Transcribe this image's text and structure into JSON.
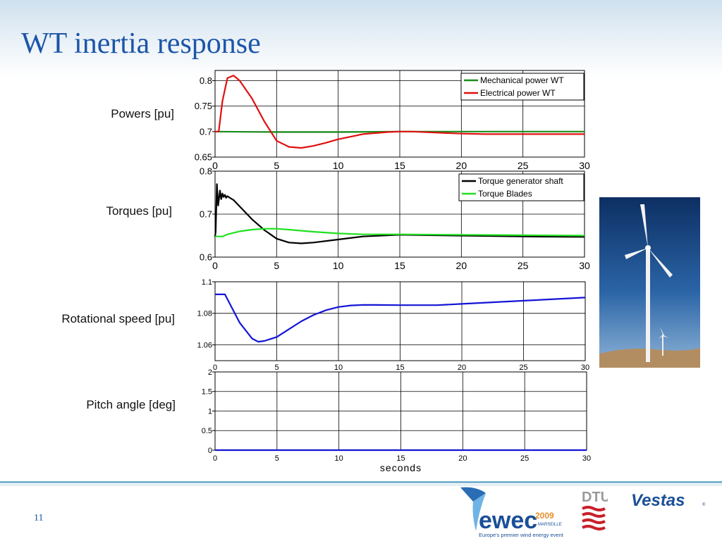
{
  "slide": {
    "title": "WT inertia response",
    "page_number": "11"
  },
  "row_labels": [
    "Powers [pu]",
    "Torques [pu]",
    "Rotational speed [pu]",
    "Pitch angle [deg]"
  ],
  "logos": {
    "ewec": {
      "name": "ewec",
      "year": "2009",
      "city": "MARSEILLE",
      "tagline": "Europe's premier wind energy event"
    },
    "dtu": "DTU",
    "vestas": "Vestas"
  },
  "chart_data": [
    {
      "type": "line",
      "ylim": [
        0.65,
        0.82
      ],
      "yticks": [
        0.65,
        0.7,
        0.75,
        0.8
      ],
      "yticklabels": [
        "0.65",
        "0.7",
        "0.75",
        "0.8"
      ],
      "xlim": [
        0,
        30
      ],
      "xticks": [
        0,
        5,
        10,
        15,
        20,
        25,
        30
      ],
      "xticklabels": [
        "0",
        "5",
        "10",
        "15",
        "20",
        "25",
        "30"
      ],
      "grid": true,
      "legend": "top-right",
      "series": [
        {
          "name": "Mechanical power WT",
          "color": "#1a8c1a",
          "x": [
            0,
            5,
            10,
            15,
            20,
            25,
            30
          ],
          "y": [
            0.7,
            0.699,
            0.699,
            0.7,
            0.7,
            0.7,
            0.7
          ]
        },
        {
          "name": "Electrical power WT",
          "color": "#e01010",
          "x": [
            0,
            0.3,
            0.6,
            1,
            1.5,
            2,
            3,
            4,
            5,
            6,
            7,
            8,
            9,
            10,
            12,
            14,
            15,
            16,
            18,
            20,
            22,
            25,
            30
          ],
          "y": [
            0.7,
            0.7,
            0.76,
            0.805,
            0.81,
            0.8,
            0.765,
            0.72,
            0.682,
            0.67,
            0.668,
            0.672,
            0.678,
            0.685,
            0.695,
            0.699,
            0.7,
            0.7,
            0.698,
            0.696,
            0.695,
            0.695,
            0.695
          ]
        }
      ]
    },
    {
      "type": "line",
      "ylim": [
        0.6,
        0.8
      ],
      "yticks": [
        0.6,
        0.7,
        0.8
      ],
      "yticklabels": [
        "0.6",
        "0.7",
        "0.8"
      ],
      "xlim": [
        0,
        30
      ],
      "xticks": [
        0,
        5,
        10,
        15,
        20,
        25,
        30
      ],
      "xticklabels": [
        "0",
        "5",
        "10",
        "15",
        "20",
        "25",
        "30"
      ],
      "grid": true,
      "legend": "top-right",
      "series": [
        {
          "name": "Torque generator shaft",
          "color": "#000000",
          "x": [
            0,
            0.05,
            0.15,
            0.25,
            0.4,
            0.5,
            0.6,
            0.7,
            0.8,
            0.9,
            1.0,
            1.2,
            1.5,
            2,
            3,
            4,
            5,
            6,
            7,
            8,
            10,
            12,
            15,
            20,
            25,
            30
          ],
          "y": [
            0.647,
            0.66,
            0.77,
            0.72,
            0.755,
            0.735,
            0.748,
            0.74,
            0.745,
            0.738,
            0.742,
            0.738,
            0.733,
            0.718,
            0.688,
            0.663,
            0.643,
            0.634,
            0.632,
            0.634,
            0.641,
            0.648,
            0.652,
            0.65,
            0.648,
            0.647
          ]
        },
        {
          "name": "Torque Blades",
          "color": "#22e022",
          "x": [
            0,
            0.6,
            1,
            2,
            3,
            4,
            5,
            6,
            8,
            10,
            12,
            15,
            20,
            25,
            30
          ],
          "y": [
            0.648,
            0.648,
            0.653,
            0.66,
            0.664,
            0.666,
            0.666,
            0.664,
            0.659,
            0.655,
            0.653,
            0.653,
            0.652,
            0.651,
            0.65
          ]
        }
      ]
    },
    {
      "type": "line",
      "ylim": [
        1.05,
        1.1
      ],
      "yticks": [
        1.06,
        1.08,
        1.1
      ],
      "yticklabels": [
        "1.06",
        "1.08",
        "1.1"
      ],
      "xlim": [
        0,
        30
      ],
      "xticks": [
        0,
        5,
        10,
        15,
        20,
        25,
        30
      ],
      "xticklabels": [
        "0",
        "5",
        "10",
        "15",
        "20",
        "25",
        "30"
      ],
      "grid": true,
      "series": [
        {
          "name": "",
          "color": "#1414d6",
          "x": [
            0,
            0.8,
            1,
            2,
            3,
            3.5,
            4,
            5,
            6,
            7,
            8,
            9,
            10,
            11,
            12,
            13,
            15,
            18,
            20,
            25,
            30
          ],
          "y": [
            1.092,
            1.092,
            1.089,
            1.074,
            1.064,
            1.062,
            1.0625,
            1.065,
            1.07,
            1.075,
            1.079,
            1.082,
            1.084,
            1.085,
            1.0853,
            1.0853,
            1.0852,
            1.0852,
            1.086,
            1.088,
            1.09
          ]
        }
      ]
    },
    {
      "type": "line",
      "ylim": [
        0,
        2
      ],
      "yticks": [
        0,
        0.5,
        1,
        1.5,
        2
      ],
      "yticklabels": [
        "0",
        "0.5",
        "1",
        "1.5",
        "2"
      ],
      "xlim": [
        0,
        30
      ],
      "xticks": [
        0,
        5,
        10,
        15,
        20,
        25,
        30
      ],
      "xticklabels": [
        "0",
        "5",
        "10",
        "15",
        "20",
        "25",
        "30"
      ],
      "xlabel": "seconds",
      "grid": true,
      "series": [
        {
          "name": "",
          "color": "#1414d6",
          "x": [
            0,
            30
          ],
          "y": [
            0,
            0
          ]
        }
      ]
    }
  ]
}
